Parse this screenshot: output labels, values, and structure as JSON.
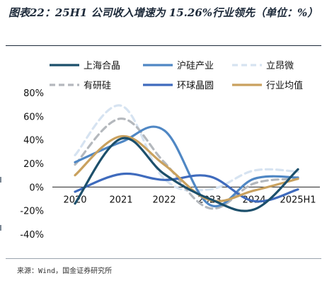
{
  "figure_title": "图表22：25H1 公司收入增速为 15.26%行业领先（单位：%）",
  "source": "来源：Wind，国金证券研究所",
  "chart_data": {
    "type": "line",
    "x": [
      "2020",
      "2021",
      "2022",
      "2023",
      "2024",
      "2025H1"
    ],
    "ylim": [
      -40,
      80
    ],
    "yticks": [
      -40,
      -20,
      0,
      20,
      40,
      60,
      80
    ],
    "ytick_labels": [
      "-40%",
      "-20%",
      "0%",
      "20%",
      "40%",
      "60%",
      "80%"
    ],
    "grid": false,
    "legend_position": "top",
    "series": [
      {
        "name": "上海合晶",
        "color": "#1c4f6b",
        "dash": "solid",
        "values": [
          -14,
          41,
          11,
          -10,
          -19,
          15
        ]
      },
      {
        "name": "沪硅产业",
        "color": "#4f87c4",
        "dash": "solid",
        "values": [
          21,
          38,
          48,
          -15,
          7,
          8
        ]
      },
      {
        "name": "立昂微",
        "color": "#d6e3f1",
        "dash": "dashed",
        "values": [
          27,
          69,
          7,
          -2,
          14,
          13
        ]
      },
      {
        "name": "有研硅",
        "color": "#b4b8bd",
        "dash": "dashed",
        "values": [
          19,
          58,
          21,
          -18,
          3,
          7
        ]
      },
      {
        "name": "环球晶圆",
        "color": "#3f6bbd",
        "dash": "solid",
        "values": [
          -4,
          11,
          6,
          9,
          -12,
          -2
        ]
      },
      {
        "name": "行业均值",
        "color": "#c9a15e",
        "dash": "solid",
        "values": [
          10,
          43,
          19,
          -11,
          -3,
          7
        ]
      }
    ]
  }
}
